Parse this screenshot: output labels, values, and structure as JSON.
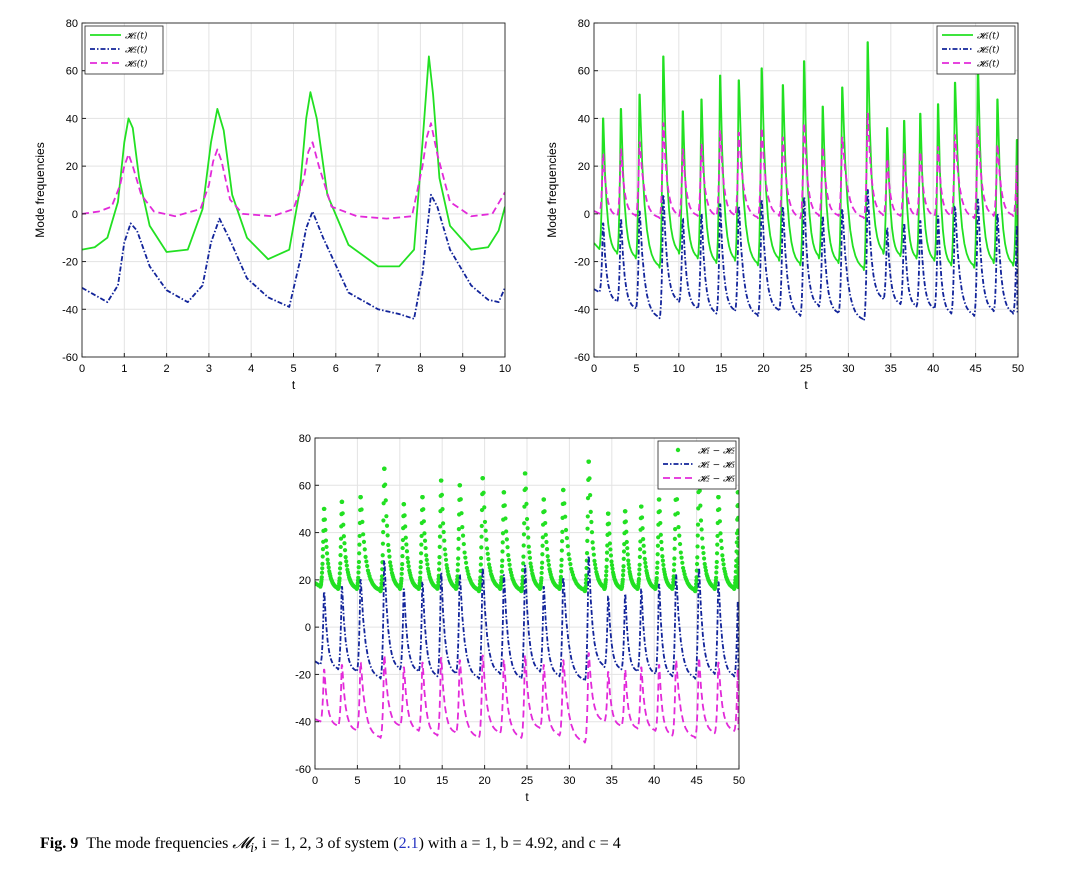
{
  "colors": {
    "green": "#22e022",
    "blue": "#12249a",
    "magenta": "#e22ad9",
    "grid": "#e3e3e3"
  },
  "caption": {
    "label": "Fig. 9",
    "text_a": "The mode frequencies ",
    "symbol": "𝓜",
    "subscript": "i",
    "text_b": ", i = 1, 2, 3 of system (",
    "ref": "2.1",
    "text_c": ") with a = 1, b = 4.92, and c = 4"
  },
  "chart_data": [
    {
      "type": "line",
      "xlabel": "t",
      "ylabel": "Mode frequencies",
      "xlim": [
        0,
        10
      ],
      "ylim": [
        -60,
        80
      ],
      "xticks": [
        0,
        1,
        2,
        3,
        4,
        5,
        6,
        7,
        8,
        9,
        10
      ],
      "yticks": [
        -60,
        -40,
        -20,
        0,
        20,
        40,
        60,
        80
      ],
      "grid": true,
      "legend_position": "top-left",
      "series": [
        {
          "name": "𝓗₁(t)",
          "color": "#22e022",
          "style": "solid",
          "x": [
            0,
            0.3,
            0.6,
            0.85,
            1.0,
            1.1,
            1.2,
            1.35,
            1.6,
            2.0,
            2.5,
            2.85,
            3.05,
            3.2,
            3.35,
            3.55,
            3.9,
            4.4,
            4.9,
            5.15,
            5.3,
            5.4,
            5.55,
            5.8,
            6.3,
            7.0,
            7.5,
            7.85,
            8.05,
            8.2,
            8.3,
            8.45,
            8.7,
            9.2,
            9.6,
            9.85,
            10
          ],
          "y": [
            -15,
            -14,
            -10,
            5,
            30,
            40,
            36,
            15,
            -5,
            -16,
            -15,
            2,
            30,
            44,
            35,
            8,
            -10,
            -19,
            -15,
            10,
            40,
            51,
            40,
            8,
            -13,
            -22,
            -22,
            -15,
            30,
            66,
            50,
            15,
            -5,
            -15,
            -14,
            -7,
            3
          ]
        },
        {
          "name": "𝓗₂(t)",
          "color": "#12249a",
          "style": "dashdot",
          "x": [
            0,
            0.3,
            0.6,
            0.85,
            1.0,
            1.15,
            1.3,
            1.6,
            2.0,
            2.5,
            2.85,
            3.05,
            3.25,
            3.5,
            3.9,
            4.4,
            4.9,
            5.15,
            5.3,
            5.45,
            5.7,
            6.3,
            7.0,
            7.5,
            7.85,
            8.05,
            8.25,
            8.4,
            8.7,
            9.2,
            9.6,
            9.85,
            10
          ],
          "y": [
            -31,
            -34,
            -37,
            -30,
            -12,
            -4,
            -7,
            -22,
            -32,
            -37,
            -30,
            -12,
            -2,
            -11,
            -27,
            -35,
            -39,
            -20,
            -6,
            1,
            -10,
            -33,
            -40,
            -42,
            -44,
            -25,
            8,
            3,
            -15,
            -30,
            -36,
            -37,
            -31
          ]
        },
        {
          "name": "𝓗₃(t)",
          "color": "#e22ad9",
          "style": "dashed",
          "x": [
            0,
            0.4,
            0.7,
            0.9,
            1.0,
            1.1,
            1.2,
            1.4,
            1.7,
            2.2,
            2.8,
            3.0,
            3.1,
            3.2,
            3.3,
            3.5,
            3.8,
            4.5,
            5.0,
            5.25,
            5.35,
            5.45,
            5.6,
            5.9,
            6.5,
            7.2,
            7.8,
            8.05,
            8.15,
            8.25,
            8.4,
            8.7,
            9.2,
            9.7,
            10
          ],
          "y": [
            0,
            1,
            3,
            12,
            20,
            25,
            20,
            8,
            1,
            -1,
            2,
            12,
            22,
            27,
            22,
            6,
            0,
            -1,
            2,
            15,
            26,
            30,
            20,
            3,
            -1,
            -2,
            -1,
            20,
            32,
            38,
            25,
            5,
            -1,
            0,
            9
          ]
        }
      ]
    },
    {
      "type": "line",
      "xlabel": "t",
      "ylabel": "Mode frequencies",
      "xlim": [
        0,
        50
      ],
      "ylim": [
        -60,
        80
      ],
      "xticks": [
        0,
        5,
        10,
        15,
        20,
        25,
        30,
        35,
        40,
        45,
        50
      ],
      "yticks": [
        -60,
        -40,
        -20,
        0,
        20,
        40,
        60,
        80
      ],
      "grid": true,
      "legend_position": "top-right",
      "peaks_t": [
        1.1,
        3.2,
        5.4,
        8.2,
        10.5,
        12.7,
        14.9,
        17.1,
        19.8,
        22.3,
        24.8,
        27.0,
        29.3,
        32.3,
        34.6,
        36.6,
        38.5,
        40.6,
        42.6,
        45.3,
        47.6,
        49.9
      ],
      "series": [
        {
          "name": "𝓗₁(t)",
          "color": "#22e022",
          "style": "solid",
          "peak_values": [
            40,
            44,
            50,
            66,
            43,
            48,
            58,
            56,
            61,
            54,
            64,
            45,
            53,
            72,
            36,
            39,
            42,
            46,
            55,
            62,
            48,
            31
          ],
          "trough_values": [
            -15,
            -17,
            -19,
            -23,
            -17,
            -19,
            -21,
            -20,
            -22,
            -20,
            -22,
            -19,
            -21,
            -24,
            -17,
            -18,
            -19,
            -20,
            -22,
            -23,
            -21,
            -22
          ]
        },
        {
          "name": "𝓗₂(t)",
          "color": "#12249a",
          "style": "dashdot",
          "peak_values": [
            -4,
            -2,
            1,
            8,
            -2,
            0,
            4,
            3,
            6,
            3,
            7,
            -1,
            2,
            10,
            -6,
            -4,
            -3,
            -1,
            3,
            6,
            0,
            -5
          ],
          "trough_values": [
            -33,
            -37,
            -40,
            -44,
            -37,
            -40,
            -42,
            -41,
            -43,
            -41,
            -43,
            -39,
            -42,
            -45,
            -36,
            -38,
            -39,
            -40,
            -42,
            -43,
            -41,
            -42
          ]
        },
        {
          "name": "𝓗₃(t)",
          "color": "#e22ad9",
          "style": "dashed",
          "peak_values": [
            25,
            27,
            30,
            38,
            27,
            29,
            35,
            34,
            36,
            32,
            38,
            28,
            32,
            42,
            23,
            25,
            26,
            28,
            33,
            37,
            29,
            20
          ],
          "trough_values": [
            0,
            -1,
            -1,
            -2,
            -1,
            -1,
            -1,
            -1,
            -2,
            -1,
            -2,
            -1,
            -1,
            -2,
            -1,
            -1,
            -1,
            -1,
            -1,
            -2,
            -1,
            -1
          ]
        }
      ]
    },
    {
      "type": "line",
      "xlabel": "t",
      "ylabel": "",
      "xlim": [
        0,
        50
      ],
      "ylim": [
        -60,
        80
      ],
      "xticks": [
        0,
        5,
        10,
        15,
        20,
        25,
        30,
        35,
        40,
        45,
        50
      ],
      "yticks": [
        -60,
        -40,
        -20,
        0,
        20,
        40,
        60,
        80
      ],
      "grid": true,
      "legend_position": "top-right",
      "peaks_t": [
        1.1,
        3.2,
        5.4,
        8.2,
        10.5,
        12.7,
        14.9,
        17.1,
        19.8,
        22.3,
        24.8,
        27.0,
        29.3,
        32.3,
        34.6,
        36.6,
        38.5,
        40.6,
        42.6,
        45.3,
        47.6,
        49.9
      ],
      "series": [
        {
          "name": "𝓗₁ − 𝓗₂",
          "color": "#22e022",
          "style": "markers",
          "peak_values": [
            50,
            53,
            55,
            67,
            52,
            55,
            62,
            60,
            63,
            57,
            65,
            54,
            58,
            70,
            48,
            49,
            51,
            54,
            60,
            64,
            55,
            57
          ],
          "trough_values": [
            17,
            16,
            16,
            15,
            16,
            16,
            16,
            16,
            15,
            16,
            15,
            16,
            16,
            15,
            16,
            16,
            16,
            16,
            16,
            15,
            16,
            16
          ]
        },
        {
          "name": "𝓗₁ − 𝓗₃",
          "color": "#12249a",
          "style": "dashdot",
          "peak_values": [
            15,
            17,
            20,
            28,
            16,
            19,
            23,
            22,
            25,
            22,
            26,
            17,
            21,
            30,
            13,
            14,
            16,
            18,
            22,
            25,
            19,
            11
          ],
          "trough_values": [
            -16,
            -18,
            -19,
            -22,
            -18,
            -19,
            -21,
            -20,
            -22,
            -20,
            -22,
            -19,
            -21,
            -23,
            -17,
            -18,
            -19,
            -20,
            -21,
            -22,
            -20,
            -21
          ]
        },
        {
          "name": "𝓗₂ − 𝓗₃",
          "color": "#e22ad9",
          "style": "dashed",
          "peak_values": [
            -18,
            -16,
            -15,
            -12,
            -17,
            -15,
            -13,
            -14,
            -12,
            -14,
            -12,
            -16,
            -14,
            -11,
            -19,
            -18,
            -17,
            -16,
            -14,
            -13,
            -15,
            -18
          ],
          "trough_values": [
            -40,
            -42,
            -44,
            -47,
            -42,
            -44,
            -46,
            -45,
            -47,
            -45,
            -47,
            -43,
            -46,
            -49,
            -40,
            -42,
            -43,
            -44,
            -46,
            -47,
            -45,
            -44
          ]
        }
      ]
    }
  ]
}
